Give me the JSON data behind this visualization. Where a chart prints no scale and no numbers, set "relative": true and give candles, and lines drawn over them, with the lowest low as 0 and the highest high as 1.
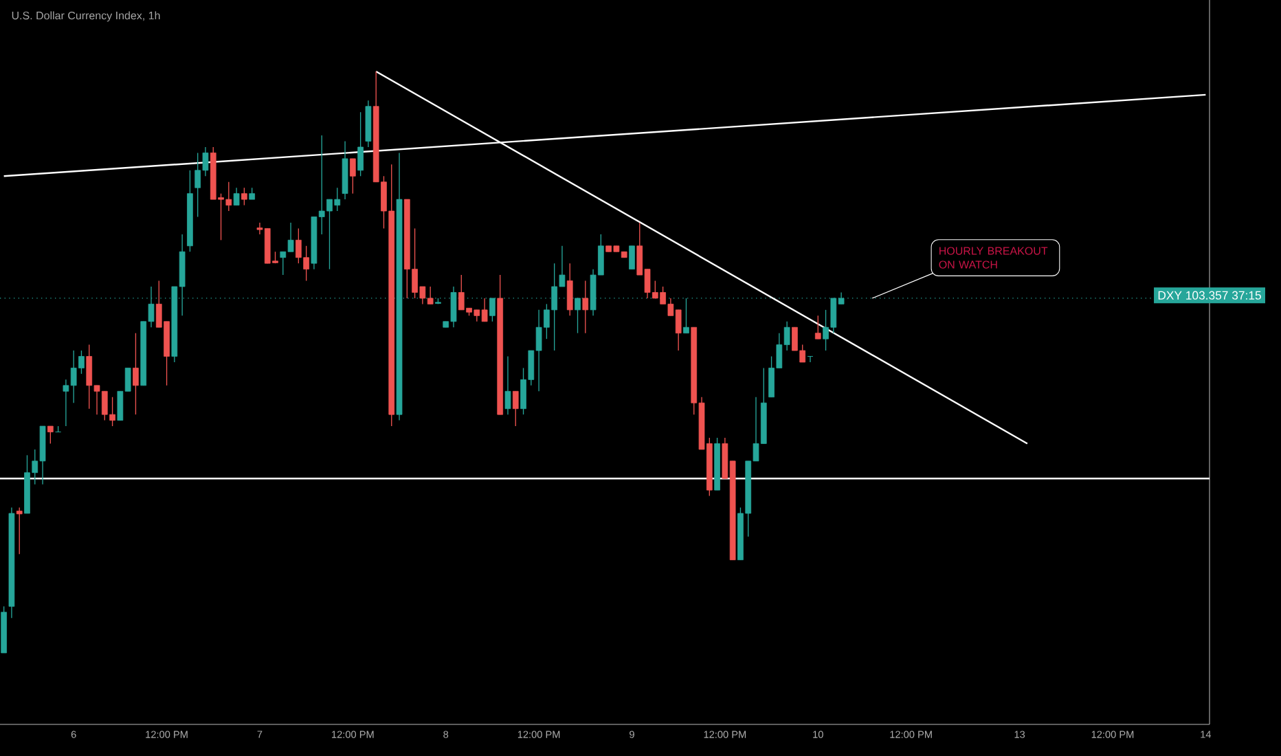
{
  "chart_data": {
    "type": "candlestick",
    "title": "U.S. Dollar Currency Index, 1h",
    "relative": true,
    "categories": [
      null,
      null,
      null,
      null,
      null,
      null,
      null,
      null,
      null,
      "6",
      null,
      null,
      null,
      null,
      null,
      null,
      null,
      null,
      null,
      null,
      null,
      "12:00 PM",
      null,
      null,
      null,
      null,
      null,
      null,
      null,
      null,
      null,
      null,
      null,
      "7",
      null,
      null,
      null,
      null,
      null,
      null,
      null,
      null,
      null,
      null,
      null,
      "12:00 PM",
      null,
      null,
      null,
      null,
      null,
      null,
      null,
      null,
      null,
      null,
      null,
      "8",
      null,
      null,
      null,
      null,
      null,
      null,
      null,
      null,
      null,
      null,
      null,
      "12:00 PM",
      null,
      null,
      null,
      null,
      null,
      null,
      null,
      null,
      null,
      null,
      null,
      "9",
      null,
      null,
      null,
      null,
      null,
      null,
      null,
      null,
      null,
      null,
      null,
      "12:00 PM",
      null,
      null,
      null,
      null,
      null,
      null,
      null,
      null,
      null,
      null,
      null,
      "10",
      null,
      null,
      null,
      null,
      null,
      null,
      null,
      null,
      null,
      null,
      null,
      "12:00 PM",
      null,
      null,
      null,
      null,
      null,
      null,
      null,
      null,
      null,
      null,
      null,
      null,
      null,
      "13",
      null,
      null,
      null,
      null,
      null,
      null,
      null,
      null,
      null,
      null,
      null,
      "12:00 PM",
      null,
      null,
      null,
      null,
      null,
      null,
      null,
      null,
      null,
      null,
      null,
      "14"
    ],
    "ohlc": [
      [
        0.0,
        0.08,
        0.0,
        0.07
      ],
      [
        0.08,
        0.25,
        0.06,
        0.24
      ],
      [
        0.244,
        0.25,
        0.17,
        0.239
      ],
      [
        0.24,
        0.34,
        0.24,
        0.31
      ],
      [
        0.31,
        0.35,
        0.29,
        0.33
      ],
      [
        0.33,
        0.39,
        0.29,
        0.39
      ],
      [
        0.39,
        0.39,
        0.36,
        0.38
      ],
      [
        0.38,
        0.39,
        0.38,
        0.38
      ],
      [
        0.45,
        0.47,
        0.39,
        0.46
      ],
      [
        0.46,
        0.52,
        0.43,
        0.49
      ],
      [
        0.49,
        0.52,
        0.48,
        0.51
      ],
      [
        0.51,
        0.53,
        0.42,
        0.46
      ],
      [
        0.46,
        0.46,
        0.41,
        0.45
      ],
      [
        0.45,
        0.45,
        0.4,
        0.41
      ],
      [
        0.41,
        0.44,
        0.39,
        0.4
      ],
      [
        0.4,
        0.45,
        0.4,
        0.45
      ],
      [
        0.45,
        0.49,
        0.45,
        0.49
      ],
      [
        0.49,
        0.55,
        0.41,
        0.46
      ],
      [
        0.46,
        0.57,
        0.46,
        0.57
      ],
      [
        0.57,
        0.63,
        0.56,
        0.6
      ],
      [
        0.6,
        0.64,
        0.56,
        0.56
      ],
      [
        0.57,
        0.57,
        0.46,
        0.51
      ],
      [
        0.51,
        0.63,
        0.5,
        0.63
      ],
      [
        0.63,
        0.72,
        0.58,
        0.69
      ],
      [
        0.7,
        0.83,
        0.69,
        0.79
      ],
      [
        0.8,
        0.86,
        0.75,
        0.83
      ],
      [
        0.83,
        0.87,
        0.82,
        0.86
      ],
      [
        0.86,
        0.87,
        0.78,
        0.78
      ],
      [
        0.783,
        0.79,
        0.71,
        0.78
      ],
      [
        0.78,
        0.81,
        0.76,
        0.77
      ],
      [
        0.77,
        0.8,
        0.77,
        0.79
      ],
      [
        0.79,
        0.8,
        0.77,
        0.78
      ],
      [
        0.78,
        0.8,
        0.78,
        0.79
      ],
      [
        0.731,
        0.74,
        0.72,
        0.728
      ],
      [
        0.73,
        0.73,
        0.67,
        0.67
      ],
      [
        0.674,
        0.69,
        0.67,
        0.671
      ],
      [
        0.68,
        0.69,
        0.65,
        0.69
      ],
      [
        0.69,
        0.74,
        0.69,
        0.71
      ],
      [
        0.71,
        0.73,
        0.67,
        0.68
      ],
      [
        0.68,
        0.7,
        0.64,
        0.66
      ],
      [
        0.67,
        0.75,
        0.66,
        0.75
      ],
      [
        0.75,
        0.89,
        0.72,
        0.76
      ],
      [
        0.76,
        0.78,
        0.66,
        0.78
      ],
      [
        0.77,
        0.8,
        0.76,
        0.78
      ],
      [
        0.79,
        0.88,
        0.78,
        0.85
      ],
      [
        0.85,
        0.85,
        0.79,
        0.82
      ],
      [
        0.83,
        0.93,
        0.82,
        0.87
      ],
      [
        0.88,
        0.95,
        0.87,
        0.94
      ],
      [
        0.94,
        1.0,
        0.81,
        0.81
      ],
      [
        0.81,
        0.82,
        0.73,
        0.76
      ],
      [
        0.76,
        0.84,
        0.39,
        0.41
      ],
      [
        0.41,
        0.86,
        0.4,
        0.78
      ],
      [
        0.78,
        0.78,
        0.61,
        0.66
      ],
      [
        0.66,
        0.73,
        0.61,
        0.62
      ],
      [
        0.63,
        0.63,
        0.6,
        0.61
      ],
      [
        0.61,
        0.63,
        0.6,
        0.6
      ],
      [
        0.601,
        0.61,
        0.6,
        0.603
      ],
      [
        0.56,
        0.57,
        0.56,
        0.57
      ],
      [
        0.57,
        0.63,
        0.56,
        0.62
      ],
      [
        0.62,
        0.65,
        0.59,
        0.59
      ],
      [
        0.593,
        0.593,
        0.58,
        0.586
      ],
      [
        0.59,
        0.59,
        0.57,
        0.58
      ],
      [
        0.59,
        0.61,
        0.57,
        0.57
      ],
      [
        0.58,
        0.61,
        0.57,
        0.61
      ],
      [
        0.61,
        0.65,
        0.41,
        0.41
      ],
      [
        0.42,
        0.51,
        0.41,
        0.45
      ],
      [
        0.45,
        0.45,
        0.39,
        0.42
      ],
      [
        0.42,
        0.49,
        0.41,
        0.47
      ],
      [
        0.47,
        0.52,
        0.46,
        0.52
      ],
      [
        0.52,
        0.59,
        0.45,
        0.56
      ],
      [
        0.56,
        0.6,
        0.54,
        0.59
      ],
      [
        0.59,
        0.67,
        0.52,
        0.63
      ],
      [
        0.63,
        0.7,
        0.63,
        0.65
      ],
      [
        0.64,
        0.67,
        0.58,
        0.59
      ],
      [
        0.59,
        0.61,
        0.55,
        0.61
      ],
      [
        0.61,
        0.64,
        0.55,
        0.59
      ],
      [
        0.59,
        0.66,
        0.58,
        0.65
      ],
      [
        0.65,
        0.72,
        0.65,
        0.7
      ],
      [
        0.7,
        0.7,
        0.69,
        0.69
      ],
      [
        0.7,
        0.7,
        0.69,
        0.69
      ],
      [
        0.69,
        0.69,
        0.68,
        0.68
      ],
      [
        0.66,
        0.7,
        0.66,
        0.7
      ],
      [
        0.7,
        0.74,
        0.65,
        0.65
      ],
      [
        0.66,
        0.66,
        0.61,
        0.62
      ],
      [
        0.62,
        0.64,
        0.61,
        0.61
      ],
      [
        0.62,
        0.63,
        0.6,
        0.6
      ],
      [
        0.6,
        0.61,
        0.58,
        0.58
      ],
      [
        0.59,
        0.59,
        0.52,
        0.55
      ],
      [
        0.55,
        0.61,
        0.55,
        0.56
      ],
      [
        0.56,
        0.56,
        0.41,
        0.43
      ],
      [
        0.43,
        0.44,
        0.35,
        0.35
      ],
      [
        0.36,
        0.37,
        0.27,
        0.28
      ],
      [
        0.28,
        0.37,
        0.28,
        0.36
      ],
      [
        0.36,
        0.37,
        0.3,
        0.3
      ],
      [
        0.33,
        0.33,
        0.16,
        0.16
      ],
      [
        0.16,
        0.25,
        0.16,
        0.24
      ],
      [
        0.24,
        0.33,
        0.2,
        0.33
      ],
      [
        0.33,
        0.44,
        0.33,
        0.36
      ],
      [
        0.36,
        0.49,
        0.36,
        0.43
      ],
      [
        0.44,
        0.51,
        0.44,
        0.49
      ],
      [
        0.49,
        0.55,
        0.49,
        0.53
      ],
      [
        0.53,
        0.57,
        0.52,
        0.56
      ],
      [
        0.56,
        0.56,
        0.52,
        0.52
      ],
      [
        0.52,
        0.53,
        0.5,
        0.5
      ],
      [
        0.51,
        0.51,
        0.5,
        0.51
      ],
      [
        0.55,
        0.58,
        0.54,
        0.54
      ],
      [
        0.54,
        0.59,
        0.52,
        0.56
      ],
      [
        0.56,
        0.61,
        0.55,
        0.61
      ],
      [
        0.6,
        0.62,
        0.6,
        0.61
      ],
      null,
      null,
      null,
      null,
      null,
      null,
      null,
      null,
      null,
      null,
      null,
      null,
      null,
      null,
      null,
      null,
      null,
      null,
      null,
      null,
      null,
      null,
      null,
      null,
      null,
      null,
      null,
      null,
      null,
      null,
      null,
      null,
      null,
      null,
      null,
      null,
      null,
      null,
      null,
      null,
      null,
      null,
      null,
      null,
      null,
      null,
      null
    ],
    "series": [
      {
        "type": "line",
        "color": "#ffffff",
        "values": [
          0.82,
          null,
          null,
          null,
          null,
          null,
          null,
          null,
          null,
          null,
          null,
          null,
          null,
          null,
          null,
          null,
          null,
          null,
          null,
          null,
          null,
          null,
          null,
          null,
          null,
          null,
          null,
          null,
          null,
          null,
          null,
          null,
          null,
          null,
          null,
          null,
          null,
          null,
          null,
          null,
          null,
          null,
          null,
          null,
          null,
          null,
          null,
          null,
          null,
          null,
          null,
          null,
          null,
          null,
          null,
          null,
          null,
          null,
          null,
          null,
          null,
          null,
          null,
          null,
          null,
          null,
          null,
          null,
          null,
          null,
          null,
          null,
          null,
          null,
          null,
          null,
          null,
          null,
          null,
          null,
          null,
          null,
          null,
          null,
          null,
          null,
          null,
          null,
          null,
          null,
          null,
          null,
          null,
          null,
          null,
          null,
          null,
          null,
          null,
          null,
          null,
          null,
          null,
          null,
          null,
          null,
          null,
          null,
          null,
          null,
          null,
          null,
          null,
          null,
          null,
          null,
          null,
          null,
          null,
          null,
          null,
          null,
          null,
          null,
          null,
          null,
          null,
          null,
          null,
          null,
          null,
          null,
          null,
          null,
          null,
          null,
          null,
          null,
          null,
          null,
          null,
          null,
          null,
          null,
          null,
          null,
          null,
          null,
          null,
          null,
          null,
          null,
          null,
          null,
          null,
          0.96
        ]
      },
      {
        "type": "line",
        "color": "#ffffff",
        "values": [
          null,
          null,
          null,
          null,
          null,
          null,
          null,
          null,
          null,
          null,
          null,
          null,
          null,
          null,
          null,
          null,
          null,
          null,
          null,
          null,
          null,
          null,
          null,
          null,
          null,
          null,
          null,
          null,
          null,
          null,
          null,
          null,
          null,
          null,
          null,
          null,
          null,
          null,
          null,
          null,
          null,
          null,
          null,
          null,
          null,
          null,
          null,
          null,
          1.0,
          null,
          null,
          null,
          null,
          null,
          null,
          null,
          null,
          null,
          null,
          null,
          null,
          null,
          null,
          null,
          null,
          null,
          null,
          null,
          null,
          null,
          null,
          null,
          null,
          null,
          null,
          null,
          null,
          null,
          null,
          null,
          null,
          null,
          null,
          null,
          null,
          null,
          null,
          null,
          null,
          null,
          null,
          null,
          null,
          null,
          null,
          null,
          null,
          null,
          null,
          null,
          null,
          null,
          null,
          null,
          null,
          null,
          null,
          null,
          null,
          null,
          null,
          null,
          null,
          null,
          null,
          null,
          null,
          null,
          null,
          null,
          null,
          null,
          null,
          null,
          null,
          null,
          null,
          null,
          null,
          null,
          null,
          null,
          0.36,
          null,
          null,
          null,
          null,
          null,
          null,
          null,
          null,
          null,
          null,
          null,
          null,
          null,
          null,
          null,
          null,
          null,
          null,
          null,
          null,
          null,
          null,
          null
        ]
      }
    ],
    "ref_lines": [
      {
        "axis": "y",
        "value": 0.3,
        "color": "#ffffff",
        "line_style": "solid"
      },
      {
        "axis": "y",
        "value": 0.61,
        "color": "#26a69a",
        "line_style": "dotted"
      }
    ],
    "annotations": [
      {
        "text": "HOURLY BREAKOUT ON WATCH",
        "y": 0.61
      },
      "DXY 103.357 37:15"
    ]
  }
}
